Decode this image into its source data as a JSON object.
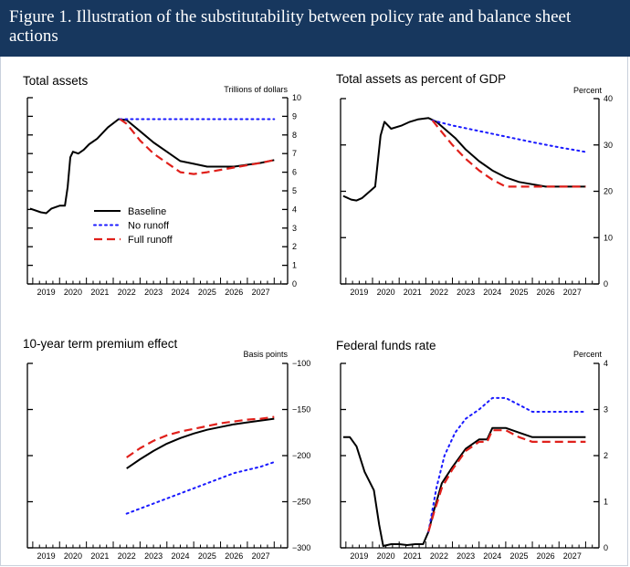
{
  "figure": {
    "title": "Figure 1. Illustration of the substitutability between policy rate and balance sheet actions",
    "background": "#17375e"
  },
  "styles": {
    "Baseline": {
      "color": "#000000",
      "dash": "none",
      "width": 2
    },
    "No runoff": {
      "color": "#1a1aff",
      "dash": "2,4",
      "width": 2
    },
    "Full runoff": {
      "color": "#e0201b",
      "dash": "9,5",
      "width": 2.2
    }
  },
  "chart_data": [
    {
      "id": "total-assets",
      "type": "line",
      "title": "Total assets",
      "units": "Trillions of dollars",
      "xlabel": "",
      "ylabel": "",
      "x_ticks": [
        "2019",
        "2020",
        "2021",
        "2022",
        "2023",
        "2024",
        "2025",
        "2026",
        "2027"
      ],
      "xlim": [
        2018.3,
        2028.0
      ],
      "ylim": [
        0,
        10
      ],
      "y_ticks": [
        0,
        1,
        2,
        3,
        4,
        5,
        6,
        7,
        8,
        9,
        10
      ],
      "y_tick_labels": [
        "0",
        "1",
        "2",
        "3",
        "4",
        "5",
        "6",
        "7",
        "8",
        "9",
        "10"
      ],
      "legend": {
        "position": "lower-left",
        "entries": [
          "Baseline",
          "No runoff",
          "Full runoff"
        ]
      },
      "series": [
        {
          "name": "Baseline",
          "x": [
            2018.4,
            2018.8,
            2019.0,
            2019.2,
            2019.5,
            2019.7,
            2019.8,
            2019.9,
            2020.0,
            2020.2,
            2020.4,
            2020.6,
            2020.9,
            2021.3,
            2021.7,
            2022.0,
            2022.5,
            2023.0,
            2023.5,
            2024.0,
            2024.5,
            2025.0,
            2026.0,
            2027.0,
            2027.5
          ],
          "y": [
            4.05,
            3.85,
            3.8,
            4.05,
            4.2,
            4.2,
            5.2,
            6.8,
            7.1,
            7.0,
            7.2,
            7.5,
            7.8,
            8.4,
            8.85,
            8.8,
            8.2,
            7.6,
            7.1,
            6.6,
            6.45,
            6.3,
            6.3,
            6.5,
            6.65
          ]
        },
        {
          "name": "No runoff",
          "x": [
            2021.75,
            2023.0,
            2024.5,
            2026.0,
            2027.5
          ],
          "y": [
            8.85,
            8.85,
            8.85,
            8.85,
            8.85
          ]
        },
        {
          "name": "Full runoff",
          "x": [
            2021.75,
            2022.0,
            2022.5,
            2023.0,
            2023.5,
            2024.0,
            2024.5,
            2025.0,
            2026.0,
            2027.0,
            2027.5
          ],
          "y": [
            8.85,
            8.6,
            7.7,
            7.0,
            6.5,
            6.0,
            5.9,
            6.0,
            6.25,
            6.5,
            6.65
          ]
        }
      ]
    },
    {
      "id": "assets-gdp",
      "type": "line",
      "title": "Total assets as percent of GDP",
      "units": "Percent",
      "xlabel": "",
      "ylabel": "",
      "x_ticks": [
        "2019",
        "2020",
        "2021",
        "2022",
        "2023",
        "2024",
        "2025",
        "2026",
        "2027"
      ],
      "xlim": [
        2018.3,
        2028.0
      ],
      "ylim": [
        0,
        40
      ],
      "y_ticks": [
        0,
        10,
        20,
        30,
        40
      ],
      "y_tick_labels": [
        "0",
        "10",
        "20",
        "30",
        "40"
      ],
      "series": [
        {
          "name": "Baseline",
          "x": [
            2018.4,
            2018.7,
            2018.9,
            2019.1,
            2019.3,
            2019.6,
            2019.8,
            2019.95,
            2020.2,
            2020.6,
            2020.9,
            2021.2,
            2021.6,
            2021.9,
            2022.2,
            2022.6,
            2023.0,
            2023.5,
            2024.0,
            2024.5,
            2025.0,
            2026.0,
            2027.0,
            2027.5
          ],
          "y": [
            19.0,
            18.2,
            18.0,
            18.5,
            19.5,
            21.0,
            32.0,
            35.0,
            33.5,
            34.2,
            35.0,
            35.5,
            35.8,
            35.0,
            33.5,
            31.5,
            29.0,
            26.5,
            24.5,
            23.0,
            22.0,
            21.0,
            21.0,
            21.0
          ]
        },
        {
          "name": "No runoff",
          "x": [
            2021.75,
            2022.5,
            2023.5,
            2024.5,
            2025.5,
            2026.5,
            2027.5
          ],
          "y": [
            35.3,
            34.2,
            33.0,
            31.8,
            30.6,
            29.5,
            28.5
          ]
        },
        {
          "name": "Full runoff",
          "x": [
            2021.75,
            2022.0,
            2022.5,
            2023.0,
            2023.5,
            2024.0,
            2024.5,
            2025.0,
            2026.0,
            2027.0,
            2027.5
          ],
          "y": [
            35.3,
            33.5,
            30.0,
            27.0,
            24.5,
            22.5,
            21.0,
            21.0,
            21.0,
            21.0,
            21.0
          ]
        }
      ]
    },
    {
      "id": "term-premium",
      "type": "line",
      "title": "10-year term premium effect",
      "units": "Basis points",
      "xlabel": "",
      "ylabel": "",
      "x_ticks": [
        "2019",
        "2020",
        "2021",
        "2022",
        "2023",
        "2024",
        "2025",
        "2026",
        "2027"
      ],
      "xlim": [
        2018.3,
        2028.0
      ],
      "ylim": [
        -300,
        -100
      ],
      "y_ticks": [
        -300,
        -250,
        -200,
        -150,
        -100
      ],
      "y_tick_labels": [
        "−300",
        "−250",
        "−200",
        "−150",
        "−100"
      ],
      "series": [
        {
          "name": "Baseline",
          "x": [
            2022.0,
            2022.5,
            2023.0,
            2023.5,
            2024.0,
            2024.5,
            2025.0,
            2025.5,
            2026.0,
            2026.5,
            2027.0,
            2027.5
          ],
          "y": [
            -214,
            -204,
            -195,
            -187,
            -181,
            -176,
            -172,
            -169,
            -166,
            -164,
            -162,
            -160
          ]
        },
        {
          "name": "No runoff",
          "x": [
            2022.0,
            2023.0,
            2024.0,
            2025.0,
            2026.0,
            2027.0,
            2027.5
          ],
          "y": [
            -263,
            -252,
            -241,
            -230,
            -219,
            -212,
            -207
          ]
        },
        {
          "name": "Full runoff",
          "x": [
            2022.0,
            2022.5,
            2023.0,
            2023.5,
            2024.0,
            2024.5,
            2025.0,
            2025.5,
            2026.0,
            2026.5,
            2027.0,
            2027.5
          ],
          "y": [
            -202,
            -192,
            -184,
            -178,
            -174,
            -171,
            -168,
            -165,
            -163,
            -161,
            -160,
            -158
          ]
        }
      ]
    },
    {
      "id": "fed-funds",
      "type": "line",
      "title": "Federal funds rate",
      "units": "Percent",
      "xlabel": "",
      "ylabel": "",
      "x_ticks": [
        "2019",
        "2020",
        "2021",
        "2022",
        "2023",
        "2024",
        "2025",
        "2026",
        "2027"
      ],
      "xlim": [
        2018.3,
        2028.0
      ],
      "ylim": [
        0,
        4
      ],
      "y_ticks": [
        0,
        1,
        2,
        3,
        4
      ],
      "y_tick_labels": [
        "0",
        "1",
        "2",
        "3",
        "4"
      ],
      "series": [
        {
          "name": "Baseline",
          "x": [
            2018.4,
            2018.65,
            2018.9,
            2019.2,
            2019.55,
            2019.75,
            2019.9,
            2020.2,
            2020.5,
            2020.8,
            2021.1,
            2021.4,
            2021.6,
            2021.8,
            2022.1,
            2022.5,
            2023.0,
            2023.5,
            2023.8,
            2024.0,
            2024.5,
            2025.0,
            2025.5,
            2026.0,
            2027.0,
            2027.5
          ],
          "y": [
            2.4,
            2.4,
            2.2,
            1.65,
            1.25,
            0.5,
            0.04,
            0.08,
            0.08,
            0.06,
            0.08,
            0.08,
            0.35,
            0.8,
            1.4,
            1.75,
            2.15,
            2.35,
            2.35,
            2.6,
            2.6,
            2.5,
            2.4,
            2.4,
            2.4,
            2.4
          ]
        },
        {
          "name": "No runoff",
          "x": [
            2021.6,
            2021.9,
            2022.2,
            2022.6,
            2023.0,
            2023.5,
            2024.0,
            2024.5,
            2025.0,
            2025.5,
            2026.0,
            2027.0,
            2027.5
          ],
          "y": [
            0.35,
            1.3,
            2.0,
            2.5,
            2.8,
            3.0,
            3.25,
            3.25,
            3.1,
            2.95,
            2.95,
            2.95,
            2.95
          ]
        },
        {
          "name": "Full runoff",
          "x": [
            2021.6,
            2021.8,
            2022.1,
            2022.5,
            2023.0,
            2023.5,
            2023.8,
            2024.0,
            2024.5,
            2025.0,
            2025.5,
            2026.0,
            2027.0,
            2027.5
          ],
          "y": [
            0.35,
            0.75,
            1.3,
            1.7,
            2.1,
            2.3,
            2.3,
            2.55,
            2.55,
            2.4,
            2.3,
            2.3,
            2.3,
            2.3
          ]
        }
      ]
    }
  ]
}
